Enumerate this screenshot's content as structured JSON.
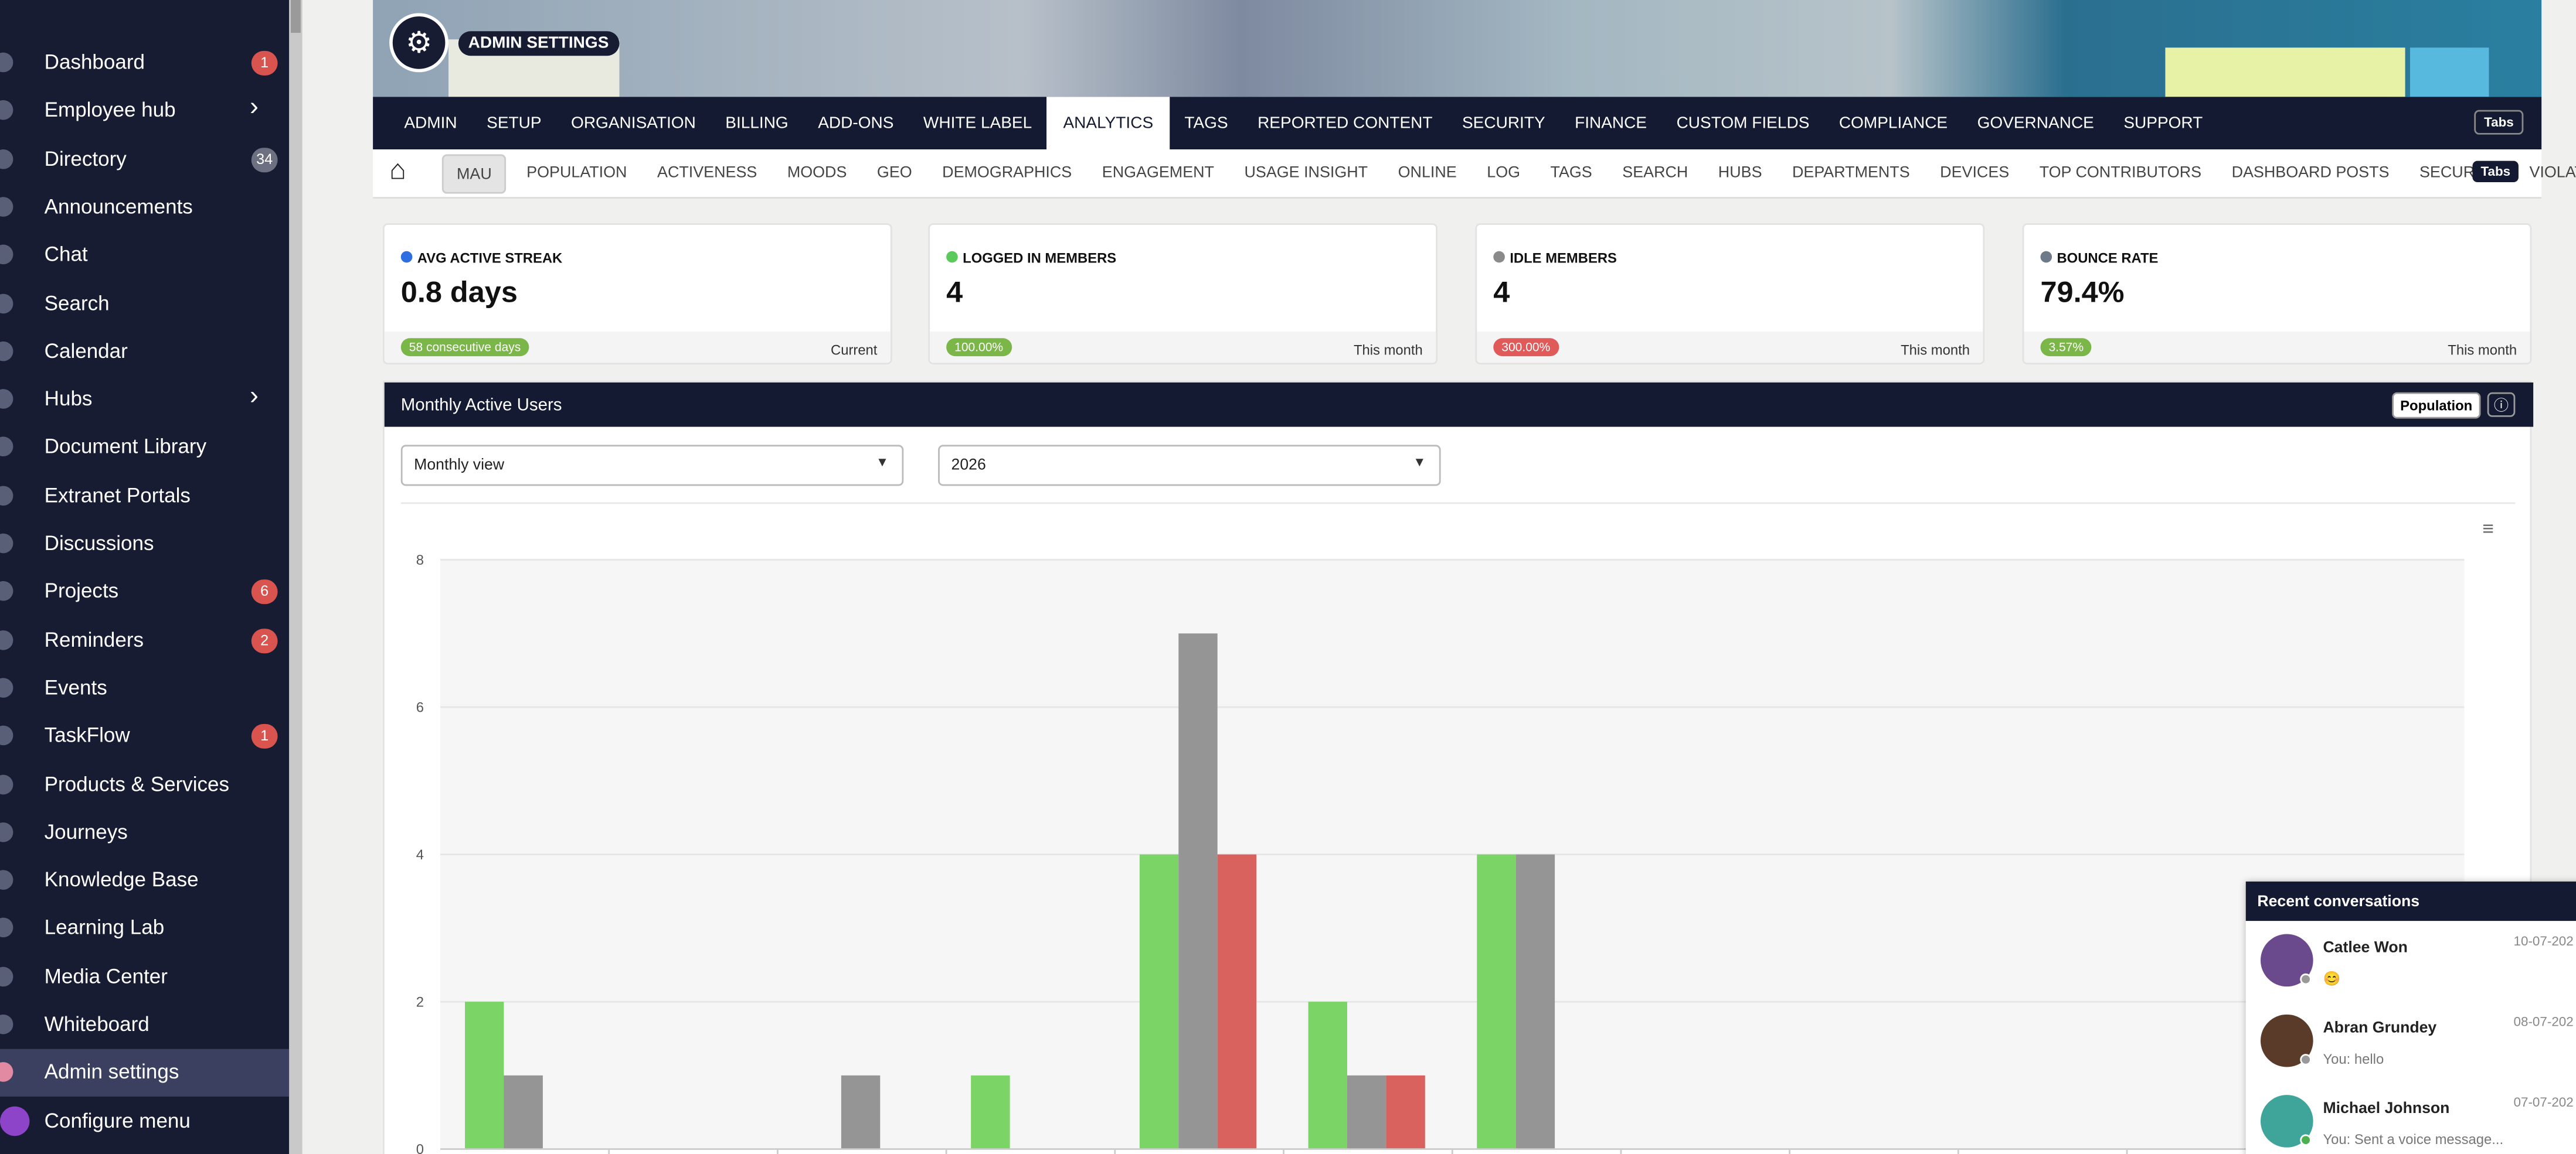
{
  "sidebar": {
    "items": [
      {
        "label": "Dashboard",
        "badge": 1,
        "badge_color": "#d9534f"
      },
      {
        "label": "Employee hub",
        "chevron": true
      },
      {
        "label": "Directory",
        "badge": 34,
        "badge_color": "#6c7080"
      },
      {
        "label": "Announcements"
      },
      {
        "label": "Chat"
      },
      {
        "label": "Search"
      },
      {
        "label": "Calendar"
      },
      {
        "label": "Hubs",
        "chevron": true
      },
      {
        "label": "Document Library"
      },
      {
        "label": "Extranet Portals"
      },
      {
        "label": "Discussions"
      },
      {
        "label": "Projects",
        "badge": 6,
        "badge_color": "#d9534f"
      },
      {
        "label": "Reminders",
        "badge": 2,
        "badge_color": "#d9534f"
      },
      {
        "label": "Events"
      },
      {
        "label": "TaskFlow",
        "badge": 1,
        "badge_color": "#d9534f"
      },
      {
        "label": "Products & Services"
      },
      {
        "label": "Journeys"
      },
      {
        "label": "Knowledge Base"
      },
      {
        "label": "Learning Lab"
      },
      {
        "label": "Media Center"
      },
      {
        "label": "Whiteboard"
      },
      {
        "label": "Admin settings",
        "active": true
      },
      {
        "label": "Configure menu"
      }
    ]
  },
  "header": {
    "title": "ADMIN SETTINGS"
  },
  "nav": {
    "tabs": [
      "ADMIN",
      "SETUP",
      "ORGANISATION",
      "BILLING",
      "ADD-ONS",
      "WHITE LABEL",
      "ANALYTICS",
      "TAGS",
      "REPORTED CONTENT",
      "SECURITY",
      "FINANCE",
      "CUSTOM FIELDS",
      "COMPLIANCE",
      "GOVERNANCE",
      "SUPPORT"
    ],
    "active": 6,
    "button": "Tabs"
  },
  "subnav": {
    "tabs": [
      "MAU",
      "POPULATION",
      "ACTIVENESS",
      "MOODS",
      "GEO",
      "DEMOGRAPHICS",
      "ENGAGEMENT",
      "USAGE INSIGHT",
      "ONLINE",
      "LOG",
      "TAGS",
      "SEARCH",
      "HUBS",
      "DEPARTMENTS",
      "DEVICES",
      "TOP CONTRIBUTORS",
      "DASHBOARD POSTS",
      "SECURITY",
      "VIOLATION"
    ],
    "active": 0,
    "button": "Tabs"
  },
  "cards": [
    {
      "title": "AVG ACTIVE STREAK",
      "color": "#2d6fe0",
      "value": "0.8 days",
      "badge": "58 consecutive days",
      "badge_color": "#7ab648",
      "period": "Current"
    },
    {
      "title": "LOGGED IN MEMBERS",
      "color": "#5cc95c",
      "value": "4",
      "badge": "100.00%",
      "badge_color": "#7ab648",
      "period": "This month"
    },
    {
      "title": "IDLE MEMBERS",
      "color": "#8a8a8a",
      "value": "4",
      "badge": "300.00%",
      "badge_color": "#e05a5a",
      "period": "This month"
    },
    {
      "title": "BOUNCE RATE",
      "color": "#6c7a89",
      "value": "79.4%",
      "badge": "3.57%",
      "badge_color": "#7ab648",
      "period": "This month"
    }
  ],
  "panel": {
    "title": "Monthly Active Users",
    "button": "Population",
    "dropdowns": [
      "Monthly view",
      "2026"
    ]
  },
  "chart_data": {
    "type": "bar",
    "categories": [
      null,
      null,
      null,
      null,
      null,
      null,
      null,
      null,
      null,
      null,
      null,
      null
    ],
    "series": [
      {
        "color": "#7ad466",
        "values": [
          2,
          0,
          0,
          1,
          4,
          2,
          4,
          0,
          0,
          0,
          0,
          0
        ]
      },
      {
        "color": "#959595",
        "values": [
          1,
          0,
          1,
          0,
          7,
          1,
          4,
          0,
          0,
          0,
          0,
          0
        ]
      },
      {
        "color": "#d9625f",
        "values": [
          0,
          0,
          0,
          0,
          4,
          1,
          0,
          0,
          0,
          0,
          0,
          0
        ]
      }
    ],
    "ylim": [
      0,
      8
    ],
    "yticks": [
      0,
      2,
      4,
      6,
      8
    ],
    "grid": true
  },
  "conversations": {
    "title": "Recent conversations",
    "items": [
      {
        "name": "Catlee Won",
        "date": "10-07-202",
        "message": "😊"
      },
      {
        "name": "Abran Grundey",
        "date": "08-07-202",
        "message": "You: hello"
      },
      {
        "name": "Michael Johnson",
        "date": "07-07-202",
        "message": "You: Sent a voice message..."
      }
    ]
  }
}
